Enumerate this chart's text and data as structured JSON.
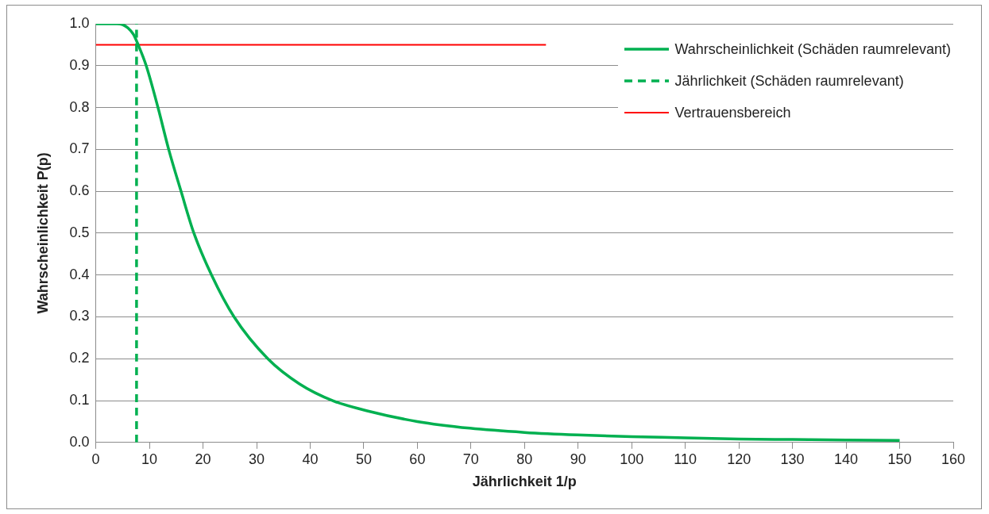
{
  "chart_data": {
    "type": "line",
    "xlabel": "Jährlichkeit 1/p",
    "ylabel": "Wahrscheinlichkeit P(p)",
    "xlim": [
      0,
      160
    ],
    "xticks": [
      0,
      10,
      20,
      30,
      40,
      50,
      60,
      70,
      80,
      90,
      100,
      110,
      120,
      130,
      140,
      150,
      160
    ],
    "ylim": [
      0,
      1
    ],
    "yticks": [
      {
        "value": 0,
        "label": "0.0"
      },
      {
        "value": 0.1,
        "label": "0.1"
      },
      {
        "value": 0.2,
        "label": "0.2"
      },
      {
        "value": 0.3,
        "label": "0.3"
      },
      {
        "value": 0.4,
        "label": "0.4"
      },
      {
        "value": 0.5,
        "label": "0.5"
      },
      {
        "value": 0.6,
        "label": "0.6"
      },
      {
        "value": 0.7,
        "label": "0.7"
      },
      {
        "value": 0.8,
        "label": "0.8"
      },
      {
        "value": 0.9,
        "label": "0.9"
      },
      {
        "value": 1,
        "label": "1.0"
      }
    ],
    "grid": "y",
    "legend": "top right",
    "marker": "none",
    "series": [
      {
        "name": "Wahrscheinlichkeit (Schäden raumrelevant)",
        "color": "#00b050",
        "line_style": "solid",
        "x": [
          0,
          4,
          5,
          6,
          7,
          7.9,
          9.4,
          11.6,
          13.6,
          15.9,
          18.3,
          21.6,
          25.8,
          32.1,
          38,
          44.2,
          50.8,
          60,
          69.8,
          80,
          89.8,
          100,
          110,
          120,
          130,
          140,
          150
        ],
        "values": [
          1,
          1,
          0.998,
          0.99,
          0.975,
          0.95,
          0.9,
          0.8,
          0.7,
          0.6,
          0.5,
          0.4,
          0.3,
          0.2,
          0.14,
          0.1,
          0.075,
          0.05,
          0.034,
          0.024,
          0.018,
          0.014,
          0.011,
          0.008,
          0.007,
          0.006,
          0.005
        ]
      },
      {
        "name": "Jährlichkeit (Schäden raumrelevant)",
        "color": "#00b050",
        "line_style": "dashed",
        "x": [
          7.6,
          7.6
        ],
        "values": [
          0,
          1
        ]
      },
      {
        "name": "Vertrauensbereich",
        "color": "#ff0000",
        "line_style": "solid",
        "x": [
          0,
          84
        ],
        "values": [
          0.95,
          0.95
        ]
      }
    ]
  }
}
